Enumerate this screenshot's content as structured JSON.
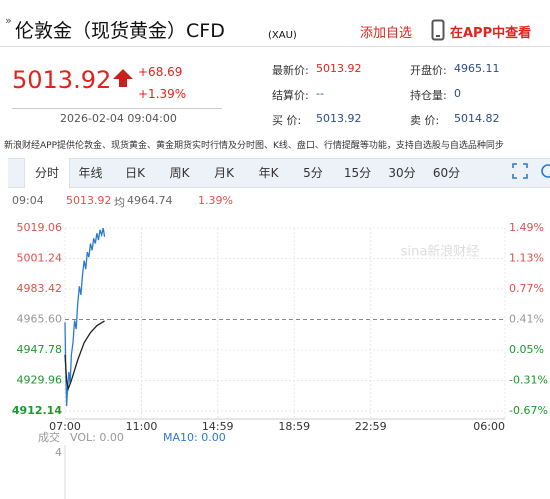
{
  "header": {
    "mark": "»",
    "title": "伦敦金（现货黄金）CFD",
    "code": "(XAU)",
    "add_watch": "添加自选",
    "app": "在APP中查看"
  },
  "quote": {
    "price": "5013.92",
    "change": "+68.69",
    "pct": "+1.39%",
    "time": "2026-02-04 09:04:00"
  },
  "stats": [
    {
      "label": "最新价:",
      "value": "5013.92"
    },
    {
      "label": "开盘价:",
      "value": "4965.11"
    },
    {
      "label": "结算价:",
      "value": "--"
    },
    {
      "label": "持仓量:",
      "value": "0"
    },
    {
      "label": "买 价:",
      "value": "5013.92"
    },
    {
      "label": "卖 价:",
      "value": "5014.82"
    }
  ],
  "notice": "新浪财经APP提供伦敦金、现货黄金、黄金期货实时行情及分时图、K线、盘口、行情提醒等功能，支持自选股与自选品种同步",
  "tabs": [
    "分时",
    "年线",
    "日K",
    "周K",
    "月K",
    "年K",
    "5分",
    "15分",
    "30分",
    "60分"
  ],
  "info": {
    "time": "09:04",
    "price": "5013.92",
    "avg_label": "均",
    "avg": "4964.74",
    "pct": "1.39%"
  },
  "watermark": "sina新浪财经",
  "chart": {
    "type": "line",
    "xlim": [
      0,
      1380
    ],
    "xticks": [
      {
        "value": 0,
        "label": "07:00"
      },
      {
        "value": 240,
        "label": "11:00"
      },
      {
        "value": 479,
        "label": "14:59"
      },
      {
        "value": 719,
        "label": "18:59"
      },
      {
        "value": 959,
        "label": "22:59"
      },
      {
        "value": 1380,
        "label": "06:00"
      }
    ],
    "ylim": [
      4912.14,
      5019.06
    ],
    "yticks": [
      5019.06,
      5001.24,
      4983.42,
      {
        "value": 4965.6,
        "label": "4965.60"
      },
      4947.78,
      4929.96,
      4912.14
    ],
    "y2lim": [
      -0.67,
      1.49
    ],
    "y2ticks": [
      {
        "value": 1.49,
        "label": "1.49%"
      },
      {
        "value": 1.13,
        "label": "1.13%"
      },
      {
        "value": 0.77,
        "label": "0.77%"
      },
      {
        "value": 0.41,
        "label": "0.41%"
      },
      {
        "value": 0.05,
        "label": "0.05%"
      },
      {
        "value": -0.31,
        "label": "-0.31%"
      },
      {
        "value": -0.67,
        "label": "-0.67%"
      }
    ],
    "series": [
      {
        "color": "#2a7bd0",
        "x": [
          0,
          2,
          5,
          8,
          12,
          16,
          20,
          25,
          30,
          35,
          40,
          45,
          50,
          55,
          60,
          65,
          70,
          75,
          80,
          85,
          90,
          95,
          100,
          105,
          110,
          115,
          120,
          124
        ],
        "values": [
          4964,
          4940,
          4915,
          4925,
          4935,
          4928,
          4945,
          4952,
          4965,
          4960,
          4975,
          4985,
          4980,
          4992,
          5000,
          4995,
          5005,
          5002,
          5010,
          5006,
          5013,
          5010,
          5016,
          5012,
          5018,
          5015,
          5019,
          5013.92
        ]
      },
      {
        "color": "#222222",
        "x": [
          0,
          5,
          10,
          20,
          40,
          60,
          80,
          100,
          124
        ],
        "values": [
          4945,
          4930,
          4925,
          4930,
          4942,
          4952,
          4958,
          4962,
          4964.74
        ]
      }
    ]
  },
  "volume": {
    "label": "成交",
    "vol": "VOL: 0.00",
    "ma": "MA10: 0.00",
    "tick": "4"
  }
}
